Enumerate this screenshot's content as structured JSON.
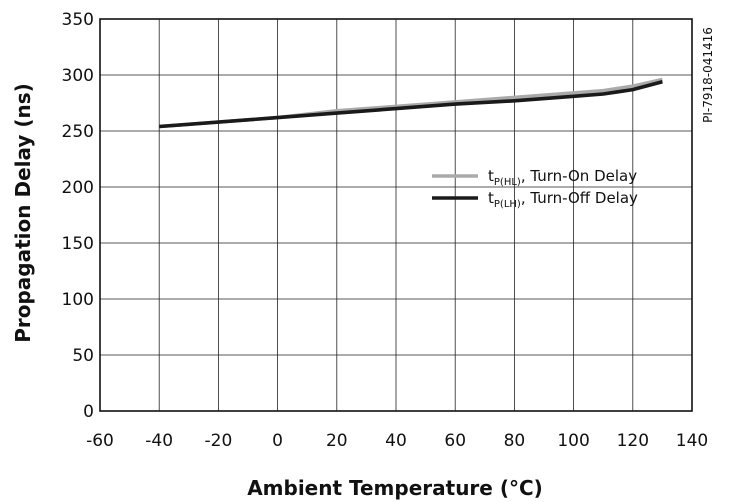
{
  "chart_data": {
    "type": "line",
    "xlabel": "Ambient Temperature (°C)",
    "ylabel": "Propagation Delay (ns)",
    "xlim": [
      -60,
      140
    ],
    "ylim": [
      0,
      350
    ],
    "xticks": [
      -60,
      -40,
      -20,
      0,
      20,
      40,
      60,
      80,
      100,
      120,
      140
    ],
    "yticks": [
      0,
      50,
      100,
      150,
      200,
      250,
      300,
      350
    ],
    "grid": true,
    "legend_position": "right",
    "figure_id": "PI-7918-041416",
    "series": [
      {
        "name_main": "t",
        "name_sub": "P(HL)",
        "name_rest": ", Turn-On Delay",
        "color": "#aaaaaa",
        "x": [
          -40,
          0,
          20,
          40,
          60,
          80,
          100,
          110,
          120,
          130
        ],
        "y": [
          254,
          262,
          268,
          272,
          276,
          280,
          284,
          286,
          290,
          296
        ]
      },
      {
        "name_main": "t",
        "name_sub": "P(LH)",
        "name_rest": ", Turn-Off Delay",
        "color": "#1a1a1a",
        "x": [
          -40,
          0,
          20,
          40,
          60,
          80,
          100,
          110,
          115,
          120,
          130
        ],
        "y": [
          254,
          262,
          266,
          270,
          274,
          277,
          281,
          283,
          285,
          287,
          294
        ]
      }
    ]
  }
}
